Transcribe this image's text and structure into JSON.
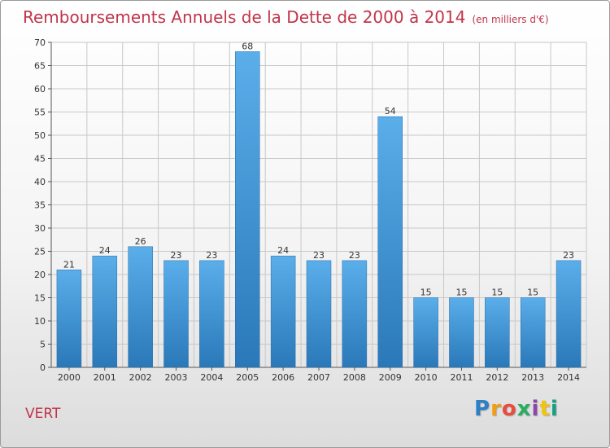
{
  "header": {
    "title": "Remboursements Annuels de la Dette de 2000 à 2014",
    "unit": "(en milliers d'€)"
  },
  "footer": {
    "commune": "VERT",
    "logo_text": "Proxiti"
  },
  "colors": {
    "title": "#c0354a",
    "bar_top": "#5aaeea",
    "bar_bottom": "#2a78b8",
    "grid": "#c8c8c8"
  },
  "chart_data": {
    "type": "bar",
    "title": "Remboursements Annuels de la Dette de 2000 à 2014",
    "subtitle": "(en milliers d'€)",
    "xlabel": "",
    "ylabel": "",
    "categories": [
      "2000",
      "2001",
      "2002",
      "2003",
      "2004",
      "2005",
      "2006",
      "2007",
      "2008",
      "2009",
      "2010",
      "2011",
      "2012",
      "2013",
      "2014"
    ],
    "values": [
      21,
      24,
      26,
      23,
      23,
      68,
      24,
      23,
      23,
      54,
      15,
      15,
      15,
      15,
      23
    ],
    "ylim": [
      0,
      70
    ],
    "yticks": [
      0,
      5,
      10,
      15,
      20,
      25,
      30,
      35,
      40,
      45,
      50,
      55,
      60,
      65,
      70
    ],
    "grid": true,
    "data_labels": true
  }
}
